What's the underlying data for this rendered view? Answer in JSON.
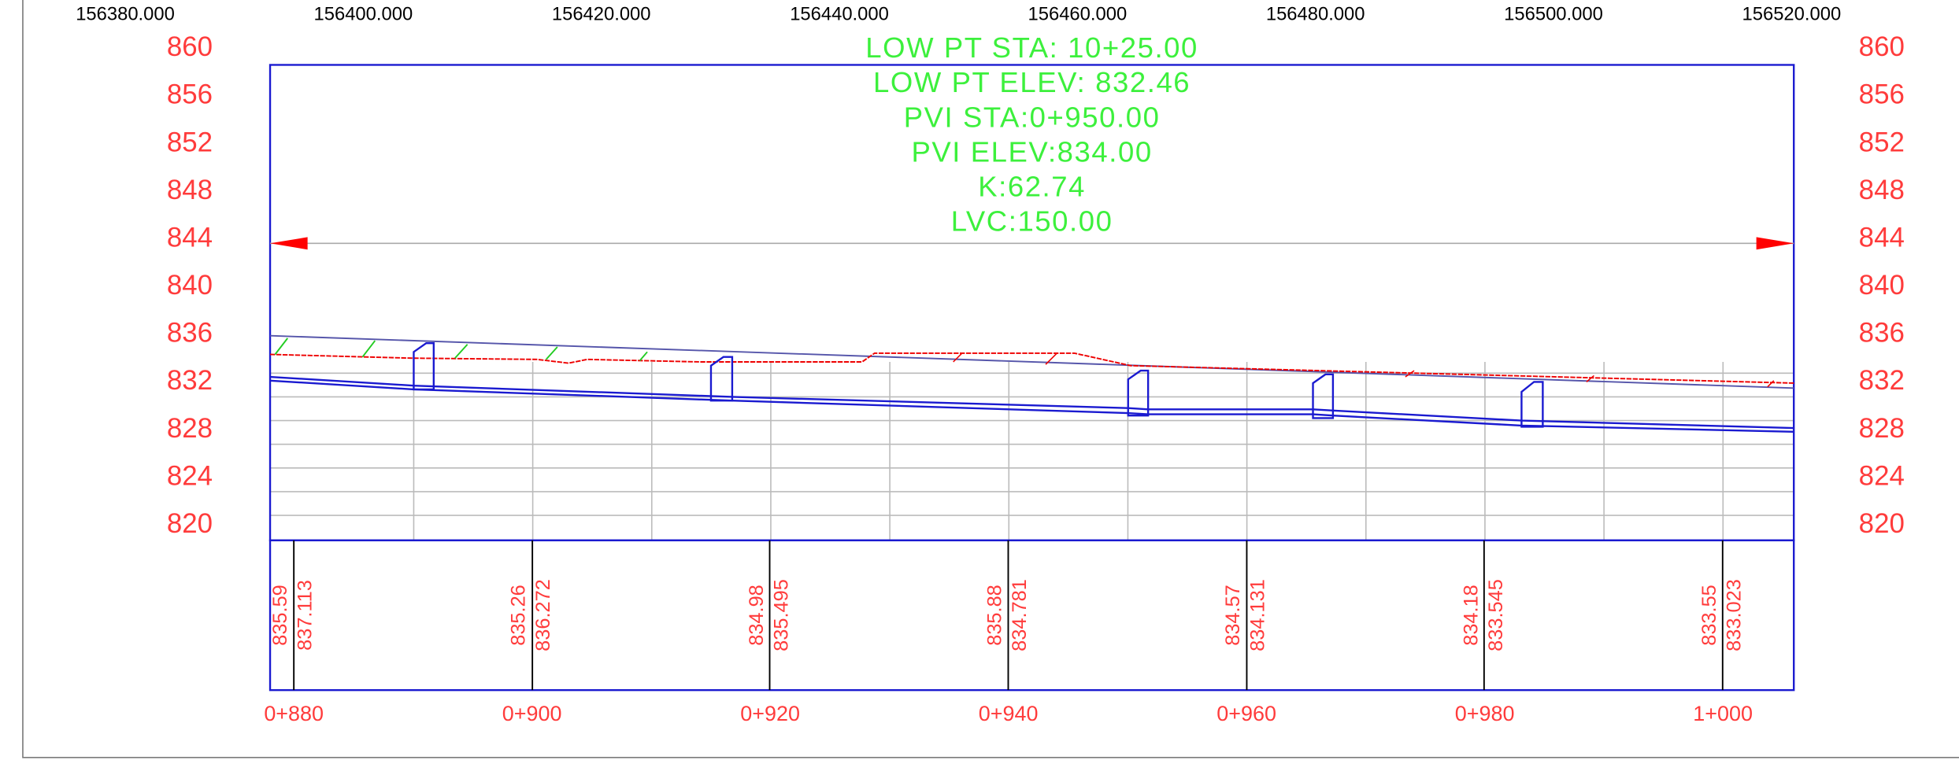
{
  "top_axis": [
    "156380.000",
    "156400.000",
    "156420.000",
    "156440.000",
    "156460.000",
    "156480.000",
    "156500.000",
    "156520.000"
  ],
  "left_axis": [
    "860",
    "856",
    "852",
    "848",
    "844",
    "840",
    "836",
    "832",
    "828",
    "824",
    "820"
  ],
  "right_axis": [
    "860",
    "856",
    "852",
    "848",
    "844",
    "840",
    "836",
    "832",
    "828",
    "824",
    "820"
  ],
  "annotations": [
    "LOW PT STA: 10+25.00",
    "LOW PT ELEV: 832.46",
    "PVI STA:0+950.00",
    "PVI ELEV:834.00",
    "K:62.74",
    "LVC:150.00"
  ],
  "band_labels": [
    [
      "835.59",
      "837.113"
    ],
    [
      "835.26",
      "836.272"
    ],
    [
      "834.98",
      "835.495"
    ],
    [
      "835.88",
      "834.781"
    ],
    [
      "834.57",
      "834.131"
    ],
    [
      "834.18",
      "833.545"
    ],
    [
      "833.55",
      "833.023"
    ]
  ],
  "stations": [
    "0+880",
    "0+900",
    "0+920",
    "0+940",
    "0+960",
    "0+980",
    "1+000"
  ]
}
